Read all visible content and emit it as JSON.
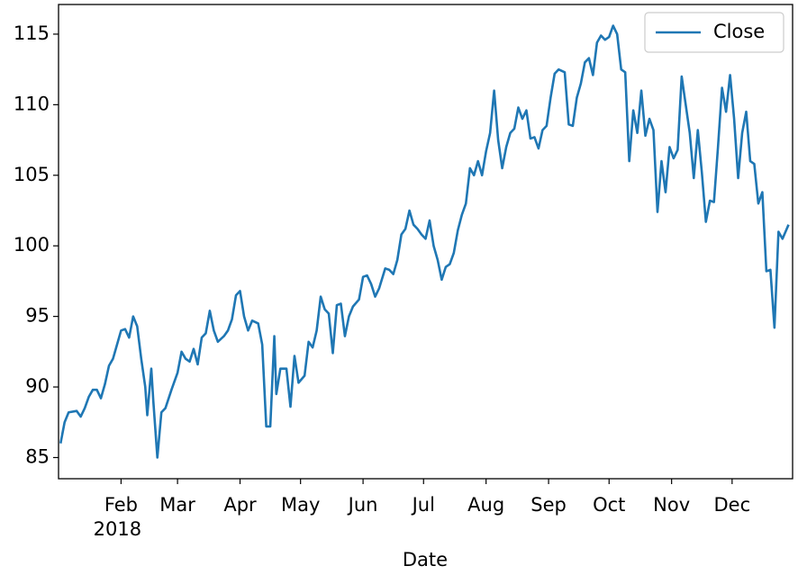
{
  "chart_data": {
    "type": "line",
    "x_label": "Date",
    "x_sub_label": "2018",
    "xlim": [
      1,
      365
    ],
    "xticks": [
      {
        "value": 32,
        "label": "Feb"
      },
      {
        "value": 60,
        "label": "Mar"
      },
      {
        "value": 91,
        "label": "Apr"
      },
      {
        "value": 121,
        "label": "May"
      },
      {
        "value": 152,
        "label": "Jun"
      },
      {
        "value": 182,
        "label": "Jul"
      },
      {
        "value": 213,
        "label": "Aug"
      },
      {
        "value": 244,
        "label": "Sep"
      },
      {
        "value": 274,
        "label": "Oct"
      },
      {
        "value": 305,
        "label": "Nov"
      },
      {
        "value": 335,
        "label": "Dec"
      }
    ],
    "ylim": [
      83.5,
      117.1
    ],
    "yticks": [
      85,
      90,
      95,
      100,
      105,
      110,
      115
    ],
    "legend_position": "upper right",
    "x": [
      2,
      4,
      6,
      10,
      12,
      14,
      16,
      18,
      20,
      22,
      24,
      26,
      28,
      30,
      32,
      34,
      36,
      38,
      40,
      42,
      44,
      45,
      47,
      48,
      50,
      52,
      54,
      57,
      60,
      62,
      64,
      66,
      68,
      70,
      72,
      74,
      76,
      78,
      80,
      83,
      85,
      87,
      89,
      91,
      93,
      95,
      97,
      100,
      102,
      104,
      106,
      108,
      109,
      111,
      114,
      116,
      118,
      120,
      123,
      125,
      127,
      129,
      131,
      133,
      135,
      137,
      139,
      141,
      143,
      145,
      147,
      150,
      152,
      154,
      156,
      158,
      160,
      163,
      165,
      167,
      169,
      171,
      173,
      175,
      177,
      179,
      181,
      183,
      185,
      187,
      189,
      191,
      193,
      195,
      197,
      199,
      201,
      203,
      205,
      207,
      209,
      211,
      213,
      215,
      217,
      219,
      221,
      223,
      225,
      227,
      229,
      231,
      233,
      235,
      237,
      239,
      241,
      243,
      245,
      247,
      249,
      252,
      254,
      256,
      258,
      260,
      262,
      264,
      266,
      268,
      270,
      272,
      274,
      276,
      278,
      280,
      282,
      284,
      286,
      288,
      290,
      292,
      294,
      296,
      298,
      300,
      302,
      304,
      306,
      308,
      310,
      312,
      314,
      316,
      318,
      320,
      322,
      324,
      326,
      328,
      330,
      332,
      334,
      336,
      338,
      340,
      342,
      344,
      346,
      348,
      350,
      352,
      354,
      356,
      358,
      360,
      363
    ],
    "series": [
      {
        "name": "Close",
        "color": "#1f77b4",
        "values": [
          86,
          87.5,
          88.2,
          88.3,
          87.9,
          88.5,
          89.3,
          89.8,
          89.8,
          89.2,
          90.2,
          91.5,
          92,
          93,
          94,
          94.1,
          93.5,
          95,
          94.3,
          92,
          90,
          88,
          91.3,
          89,
          85,
          88.2,
          88.5,
          89.8,
          91,
          92.5,
          92,
          91.8,
          92.7,
          91.6,
          93.5,
          93.8,
          95.4,
          94,
          93.2,
          93.6,
          94,
          94.8,
          96.5,
          96.8,
          95,
          94,
          94.7,
          94.5,
          93,
          87.2,
          87.2,
          93.6,
          89.5,
          91.3,
          91.3,
          88.6,
          92.2,
          90.3,
          90.8,
          93.2,
          92.8,
          94,
          96.4,
          95.5,
          95.2,
          92.4,
          95.8,
          95.9,
          93.6,
          95,
          95.7,
          96.2,
          97.8,
          97.9,
          97.3,
          96.4,
          97,
          98.4,
          98.3,
          98,
          99,
          100.8,
          101.2,
          102.5,
          101.5,
          101.2,
          100.8,
          100.5,
          101.8,
          100,
          99,
          97.6,
          98.5,
          98.7,
          99.5,
          101.1,
          102.2,
          103,
          105.5,
          105,
          106,
          105,
          106.7,
          108,
          111,
          107.5,
          105.5,
          107,
          108,
          108.3,
          109.8,
          109,
          109.6,
          107.6,
          107.7,
          106.9,
          108.2,
          108.5,
          110.5,
          112.2,
          112.5,
          112.3,
          108.6,
          108.5,
          110.5,
          111.5,
          113,
          113.3,
          112.1,
          114.4,
          114.9,
          114.6,
          114.8,
          115.6,
          115,
          112.5,
          112.3,
          106,
          109.6,
          108,
          111,
          107.8,
          109,
          108.2,
          102.4,
          106,
          103.8,
          107,
          106.2,
          106.8,
          112,
          110,
          108,
          104.8,
          108.2,
          105.2,
          101.7,
          103.2,
          103.1,
          107,
          111.2,
          109.5,
          112.1,
          109,
          104.8,
          108,
          109.5,
          106,
          105.8,
          103,
          103.8,
          98.2,
          98.3,
          94.2,
          101,
          100.5,
          101.5
        ]
      }
    ]
  }
}
